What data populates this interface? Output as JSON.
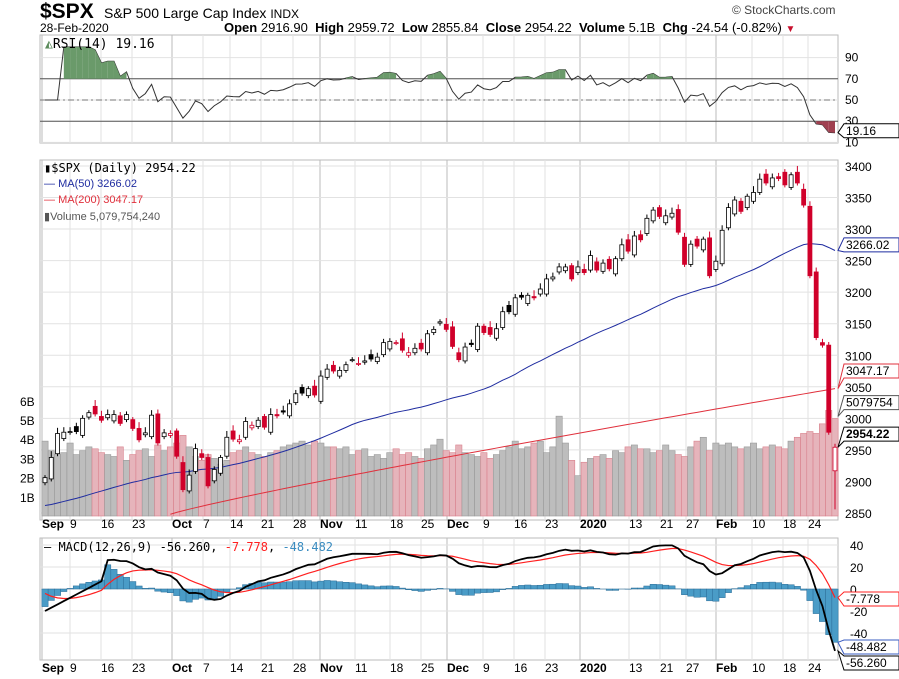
{
  "header": {
    "symbol": "$SPX",
    "name": "S&P 500 Large Cap Index",
    "exchange": "INDX",
    "date": "28-Feb-2020",
    "watermark": "© StockCharts.com",
    "open_label": "Open",
    "open": "2916.90",
    "high_label": "High",
    "high": "2959.72",
    "low_label": "Low",
    "low": "2855.84",
    "close_label": "Close",
    "close": "2954.22",
    "volume_label": "Volume",
    "volume": "5.1B",
    "chg_label": "Chg",
    "chg": "-24.54 (-0.82%)",
    "down_color": "#c8102e"
  },
  "chart_data": [
    {
      "type": "line",
      "title": "RSI(14) 19.16",
      "panel": "rsi",
      "last_value": "19.16",
      "ylim": [
        0,
        100
      ],
      "ticks": [
        "90",
        "70",
        "50",
        "30",
        "10"
      ],
      "levels": [
        70,
        50,
        30
      ]
    },
    {
      "type": "candlestick",
      "title": "$SPX (Daily) 2954.22",
      "panel": "price",
      "ylim": [
        2840,
        3410
      ],
      "ticks": [
        "3400",
        "3350",
        "3300",
        "3250",
        "3200",
        "3150",
        "3100",
        "3050",
        "3000",
        "2950",
        "2900",
        "2850"
      ],
      "legend": [
        {
          "name": "MA(50) 3266.02",
          "color": "#1f2ca0"
        },
        {
          "name": "MA(200) 3047.17",
          "color": "#e0303c"
        },
        {
          "name": "Volume 5,079,754,240",
          "color": "#666"
        }
      ],
      "ma50_last": "3266.02",
      "ma200_last": "3047.17",
      "ma200_range": [
        2848,
        3047.17
      ],
      "volume_last": "5079754",
      "close_last": "2954.22",
      "last_candle": {
        "open": 2916.9,
        "high": 2959.72,
        "low": 2855.84,
        "close": 2954.22
      },
      "closes": [
        2906,
        2938,
        2976,
        2978,
        2979,
        2979,
        3000,
        3009,
        3007,
        2997,
        3006,
        3006,
        2992,
        3006,
        2984,
        2966,
        2977,
        3005,
        2961,
        2977,
        2976,
        2940,
        2887,
        2910,
        2952,
        2938,
        2893,
        2919,
        2938,
        2970,
        2967,
        2966,
        2995,
        2989,
        2997,
        2986,
        3006,
        3004,
        3010,
        3023,
        3039,
        3040,
        3047,
        3037,
        3067,
        3078,
        3075,
        3076,
        3085,
        3093,
        3087,
        3091,
        3094,
        3097,
        3120,
        3122,
        3120,
        3108,
        3104,
        3111,
        3110,
        3134,
        3141,
        3153,
        3141,
        3114,
        3093,
        3113,
        3117,
        3146,
        3136,
        3133,
        3142,
        3169,
        3169,
        3191,
        3192,
        3195,
        3191,
        3205,
        3221,
        3224,
        3240,
        3240,
        3221,
        3240,
        3231,
        3258,
        3235,
        3246,
        3237,
        3253,
        3275,
        3265,
        3289,
        3283,
        3317,
        3330,
        3320,
        3321,
        3325,
        3295,
        3244,
        3276,
        3273,
        3284,
        3226,
        3249,
        3298,
        3334,
        3346,
        3328,
        3352,
        3358,
        3379,
        3373,
        3381,
        3380,
        3370,
        3386,
        3373,
        3338,
        3226,
        3128,
        3116,
        2978,
        2954.22
      ],
      "volume_axis": {
        "ticks": [
          "6B",
          "5B",
          "4B",
          "3B",
          "2B",
          "1B"
        ],
        "ylim": [
          0,
          7
        ]
      },
      "volumes_b": [
        3.9,
        3.4,
        3.2,
        3.3,
        3.8,
        3.2,
        3.4,
        3.6,
        3.5,
        3.3,
        3.2,
        3.1,
        3.6,
        2.9,
        3.2,
        3.4,
        3.5,
        3.1,
        3.7,
        3.4,
        3.6,
        3.8,
        4.2,
        3.6,
        3.1,
        2.9,
        3.2,
        3.0,
        2.7,
        2.9,
        3.3,
        3.4,
        3.6,
        3.3,
        3.2,
        3.1,
        3.3,
        3.4,
        3.6,
        3.7,
        3.8,
        3.9,
        3.7,
        3.9,
        3.8,
        3.6,
        3.6,
        3.5,
        3.6,
        3.2,
        3.4,
        3.5,
        3.1,
        3.2,
        3.0,
        3.3,
        3.5,
        3.2,
        3.3,
        3.1,
        3.0,
        3.5,
        3.7,
        4.0,
        3.4,
        3.3,
        3.7,
        3.3,
        3.2,
        3.1,
        3.3,
        3.0,
        3.2,
        3.4,
        3.6,
        3.9,
        3.5,
        3.6,
        3.8,
        3.9,
        3.3,
        3.6,
        5.2,
        3.8,
        2.9,
        2.1,
        2.8,
        3.0,
        3.1,
        3.2,
        3.0,
        3.4,
        3.3,
        3.6,
        3.7,
        3.5,
        3.5,
        3.3,
        3.4,
        3.7,
        3.4,
        3.2,
        3.1,
        3.6,
        3.9,
        4.1,
        3.4,
        3.8,
        3.7,
        3.8,
        3.6,
        3.5,
        3.6,
        3.8,
        3.5,
        3.6,
        3.7,
        3.6,
        3.5,
        3.9,
        4.1,
        4.3,
        4.4,
        4.3,
        4.8,
        5.5,
        5.08
      ]
    },
    {
      "type": "line",
      "title": "MACD(12,26,9)",
      "panel": "macd",
      "values": {
        "macd": "-56.260",
        "signal": "-7.778",
        "hist": "-48.482"
      },
      "ylim": [
        -68,
        46
      ],
      "ticks": [
        "40",
        "20",
        "0",
        "-20",
        "-40"
      ],
      "colors": {
        "macd": "#000000",
        "signal": "#ff2020",
        "hist": "#4a9cc7"
      }
    }
  ],
  "x_labels": [
    "Sep",
    "9",
    "16",
    "23",
    "Oct",
    "7",
    "14",
    "21",
    "28",
    "Nov",
    "11",
    "18",
    "25",
    "Dec",
    "9",
    "16",
    "23",
    "2020",
    "13",
    "21",
    "27",
    "Feb",
    "10",
    "18",
    "24"
  ]
}
